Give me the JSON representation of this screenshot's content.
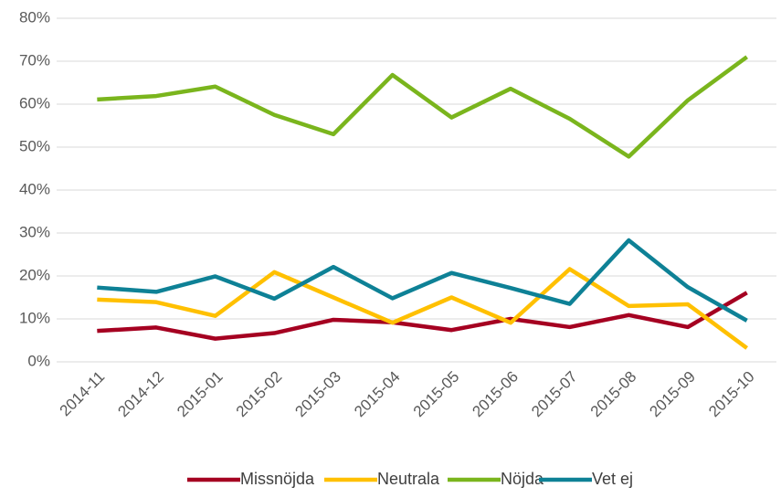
{
  "chart_data": {
    "type": "line",
    "categories": [
      "2014-11",
      "2014-12",
      "2015-01",
      "2015-02",
      "2015-03",
      "2015-04",
      "2015-05",
      "2015-06",
      "2015-07",
      "2015-08",
      "2015-09",
      "2015-10"
    ],
    "series": [
      {
        "name": "Missnöjda",
        "color": "#a50021",
        "values": [
          7.2,
          8.0,
          5.4,
          6.7,
          9.8,
          9.2,
          7.4,
          10.0,
          8.1,
          10.9,
          8.1,
          16.1
        ]
      },
      {
        "name": "Neutrala",
        "color": "#ffc000",
        "values": [
          14.5,
          13.9,
          10.7,
          20.9,
          15.0,
          9.1,
          15.0,
          9.1,
          21.6,
          13.0,
          13.4,
          3.2
        ]
      },
      {
        "name": "Nöjda",
        "color": "#7ab51d",
        "values": [
          61.1,
          61.9,
          64.1,
          57.5,
          53.0,
          66.8,
          56.9,
          63.6,
          56.6,
          47.8,
          60.9,
          71.0
        ]
      },
      {
        "name": "Vet ej",
        "color": "#0e8196",
        "values": [
          17.3,
          16.3,
          19.9,
          14.7,
          22.1,
          14.8,
          20.7,
          17.2,
          13.5,
          28.3,
          17.4,
          9.6
        ]
      }
    ],
    "ylim": [
      0,
      80
    ],
    "yticks": [
      {
        "value": 0,
        "label": "0%"
      },
      {
        "value": 10,
        "label": "10%"
      },
      {
        "value": 20,
        "label": "20%"
      },
      {
        "value": 30,
        "label": "30%"
      },
      {
        "value": 40,
        "label": "40%"
      },
      {
        "value": 50,
        "label": "50%"
      },
      {
        "value": 60,
        "label": "60%"
      },
      {
        "value": 70,
        "label": "70%"
      },
      {
        "value": 80,
        "label": "80%"
      }
    ],
    "grid": true,
    "legend": "bottom"
  }
}
